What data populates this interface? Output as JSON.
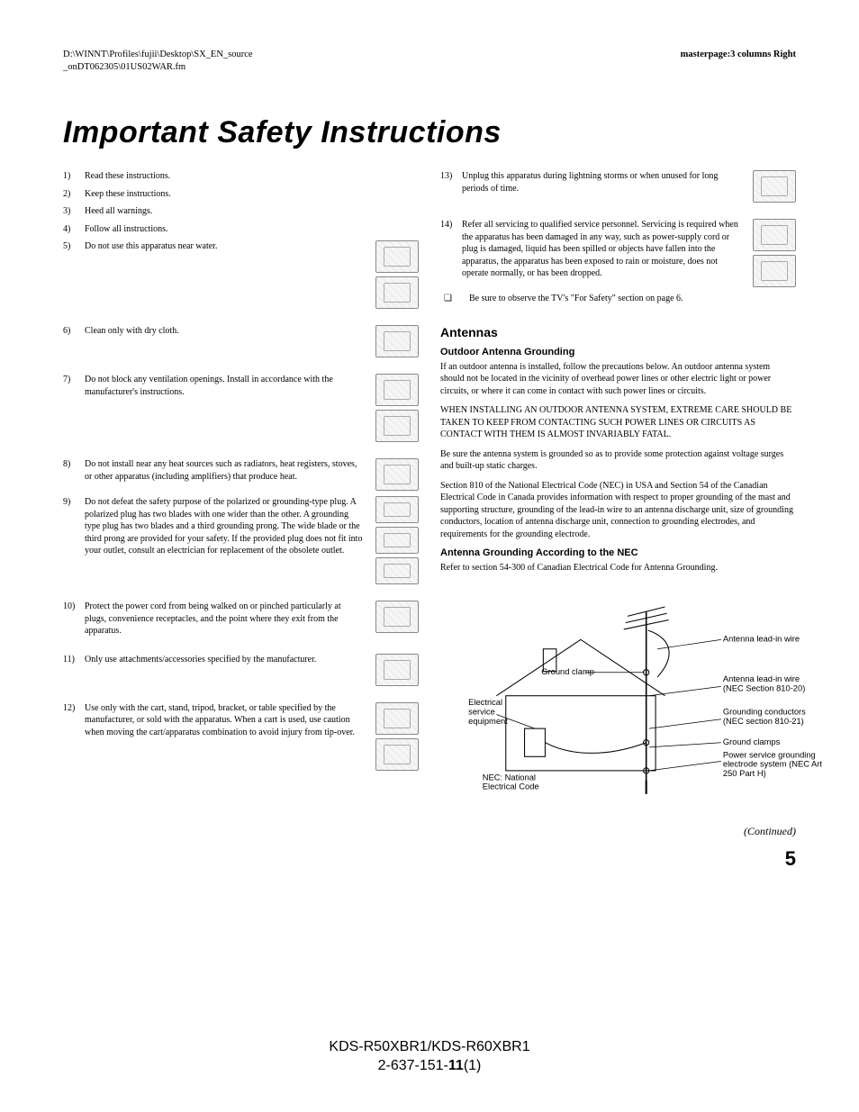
{
  "header": {
    "path_line1": "D:\\WINNT\\Profiles\\fujii\\Desktop\\SX_EN_source",
    "path_line2": "_onDT062305\\01US02WAR.fm",
    "masterpage": "masterpage:3 columns Right"
  },
  "title": "Important Safety Instructions",
  "left_items": [
    {
      "n": "1)",
      "t": "Read these instructions.",
      "figs": 0
    },
    {
      "n": "2)",
      "t": "Keep these instructions.",
      "figs": 0
    },
    {
      "n": "3)",
      "t": "Heed all warnings.",
      "figs": 0
    },
    {
      "n": "4)",
      "t": "Follow all instructions.",
      "figs": 0
    },
    {
      "n": "5)",
      "t": "Do not use this apparatus near water.",
      "figs": 2,
      "gap": true
    },
    {
      "n": "6)",
      "t": "Clean only with dry cloth.",
      "figs": 1,
      "gap": true
    },
    {
      "n": "7)",
      "t": "Do not block any ventilation openings. Install in accordance with the manufacturer's instructions.",
      "figs": 2,
      "gap": true
    },
    {
      "n": "8)",
      "t": "Do not install near any heat sources such as radiators, heat registers, stoves, or other apparatus (including amplifiers) that produce heat.",
      "figs": 1
    },
    {
      "n": "9)",
      "t": "Do not defeat the safety purpose of the polarized or grounding-type plug. A polarized plug has two blades with one wider than the other. A grounding type plug has two blades and a third grounding prong. The wide blade or the third prong are provided for your safety. If the provided plug does not fit into your outlet, consult an electrician for replacement of the obsolete outlet.",
      "figs": 3,
      "gap": true
    },
    {
      "n": "10)",
      "t": "Protect the power cord from being walked on or pinched particularly at plugs, convenience receptacles, and the point where they exit from the apparatus.",
      "figs": 1,
      "gap": true
    },
    {
      "n": "11)",
      "t": "Only use attachments/accessories specified by the manufacturer.",
      "figs": 1,
      "gap": true
    },
    {
      "n": "12)",
      "t": "Use only with the cart, stand, tripod, bracket, or table specified by the manufacturer, or sold with the apparatus. When a cart is used, use caution when moving the cart/apparatus combination to avoid injury from tip-over.",
      "figs": 2
    }
  ],
  "right_items": [
    {
      "n": "13)",
      "t": "Unplug this apparatus during lightning storms or when unused for long periods of time.",
      "figs": 1,
      "gap": true
    },
    {
      "n": "14)",
      "t": "Refer all servicing to qualified service personnel. Servicing is required when the apparatus has been damaged in any way, such as power-supply cord or plug is damaged, liquid has been spilled or objects have fallen into the apparatus, the apparatus has been exposed to rain or moisture, does not operate normally, or has been dropped.",
      "figs": 2
    }
  ],
  "bullet": {
    "mark": "❏",
    "t": "Be sure to observe the TV's \"For Safety\" section on page 6."
  },
  "antennas": {
    "heading": "Antennas",
    "sub1": "Outdoor Antenna Grounding",
    "p1": "If an outdoor antenna is installed, follow the precautions below. An outdoor antenna system should not be located in the vicinity of overhead power lines or other electric light or power circuits, or where it can come in contact with such power lines or circuits.",
    "p2": "WHEN INSTALLING AN OUTDOOR ANTENNA SYSTEM, EXTREME CARE SHOULD BE TAKEN TO KEEP FROM CONTACTING SUCH POWER LINES OR CIRCUITS AS CONTACT WITH THEM IS ALMOST INVARIABLY FATAL.",
    "p3": "Be sure the antenna system is grounded so as to provide some protection against voltage surges and built-up static charges.",
    "p4": "Section 810 of the National Electrical Code (NEC) in USA and Section 54 of the Canadian Electrical Code in Canada provides information with respect to proper grounding of the mast and supporting structure, grounding of the lead-in wire to an antenna discharge unit, size of grounding conductors, location of antenna discharge unit, connection to grounding electrodes, and requirements for the grounding electrode.",
    "sub2": "Antenna Grounding According to the NEC",
    "p5": "Refer to section 54-300 of Canadian Electrical Code for Antenna Grounding.",
    "labels": {
      "lead_in": "Antenna lead-in wire",
      "ground_clamp": "Ground clamp",
      "electrical": "Electrical service equipment",
      "lead_in2": "Antenna lead-in wire (NEC Section 810-20)",
      "conductors": "Grounding conductors (NEC section 810-21)",
      "clamps": "Ground clamps",
      "power_service": "Power service grounding electrode system (NEC Art 250 Part H)",
      "nec": "NEC: National Electrical Code"
    }
  },
  "continued": "(Continued)",
  "page_number": "5",
  "footer": {
    "model": "KDS-R50XBR1/KDS-R60XBR1",
    "doc_pre": "2-637-151-",
    "doc_bold": "11",
    "doc_post": "(1)"
  }
}
